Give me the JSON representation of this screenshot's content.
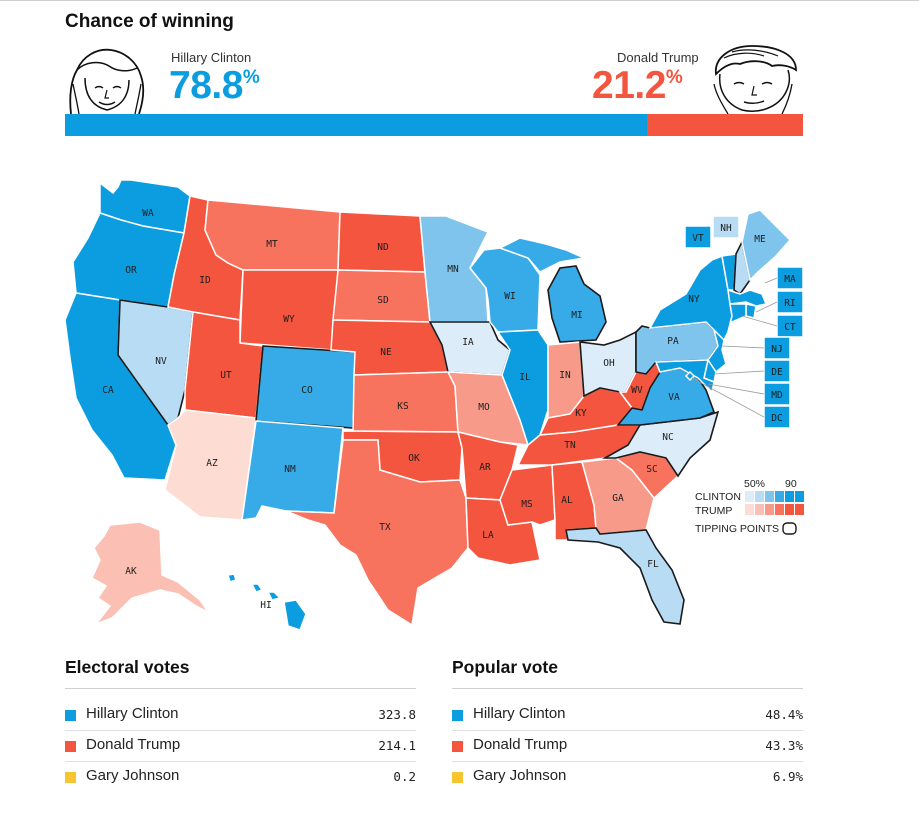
{
  "header": {
    "title": "Chance of winning",
    "clinton": {
      "name": "Hillary Clinton",
      "pct": "78.8",
      "pct_value": 78.8,
      "color": "#0b9ddf"
    },
    "trump": {
      "name": "Donald Trump",
      "pct": "21.2",
      "pct_value": 21.2,
      "color": "#f4553f"
    },
    "pct_sign": "%"
  },
  "colors": {
    "d_strong": "#0b9ddf",
    "d_mid": "#37abe8",
    "d_light": "#7fc4ec",
    "d_pale": "#b8dcf4",
    "d_faint": "#dcecf8",
    "r_strong": "#f4553f",
    "r_mid": "#f8735e",
    "r_light": "#f89a8a",
    "r_pale": "#fbc0b3",
    "r_faint": "#fcdcd3"
  },
  "map": {
    "states": {
      "WA": "d_strong",
      "OR": "d_strong",
      "CA": "d_strong",
      "NV": "d_pale",
      "ID": "r_strong",
      "MT": "r_mid",
      "WY": "r_strong",
      "UT": "r_strong",
      "AZ": "r_faint",
      "CO": "d_mid",
      "NM": "d_mid",
      "ND": "r_strong",
      "SD": "r_mid",
      "NE": "r_strong",
      "KS": "r_mid",
      "OK": "r_strong",
      "TX": "r_mid",
      "MN": "d_light",
      "IA": "d_faint",
      "MO": "r_light",
      "AR": "r_strong",
      "LA": "r_strong",
      "WI": "d_mid",
      "IL": "d_strong",
      "MS": "r_strong",
      "MI": "d_mid",
      "IN": "r_light",
      "KY": "r_strong",
      "TN": "r_strong",
      "AL": "r_strong",
      "OH": "d_faint",
      "WV": "r_strong",
      "GA": "r_light",
      "FL": "d_pale",
      "SC": "r_mid",
      "NC": "d_faint",
      "VA": "d_mid",
      "PA": "d_light",
      "NY": "d_strong",
      "ME": "d_light",
      "NH": "d_pale",
      "VT": "d_strong",
      "MA": "d_strong",
      "RI": "d_strong",
      "CT": "d_strong",
      "NJ": "d_strong",
      "DE": "d_strong",
      "MD": "d_strong",
      "DC": "d_strong",
      "AK": "r_pale",
      "HI": "d_strong"
    },
    "tipping_points": [
      "NV",
      "CO",
      "IA",
      "OH",
      "PA",
      "NC",
      "FL",
      "VA",
      "MI",
      "NH"
    ],
    "legend": {
      "scale_low": "50%",
      "scale_high": "90",
      "clinton_label": "CLINTON",
      "trump_label": "TRUMP",
      "tipping_label": "TIPPING POINTS"
    }
  },
  "electoral": {
    "title": "Electoral votes",
    "rows": [
      {
        "name": "Hillary Clinton",
        "value": "323.8",
        "color": "#0b9ddf"
      },
      {
        "name": "Donald Trump",
        "value": "214.1",
        "color": "#f4553f"
      },
      {
        "name": "Gary Johnson",
        "value": "0.2",
        "color": "#f7c52f"
      }
    ]
  },
  "popular": {
    "title": "Popular vote",
    "rows": [
      {
        "name": "Hillary Clinton",
        "value": "48.4%",
        "color": "#0b9ddf"
      },
      {
        "name": "Donald Trump",
        "value": "43.3%",
        "color": "#f4553f"
      },
      {
        "name": "Gary Johnson",
        "value": "6.9%",
        "color": "#f7c52f"
      }
    ]
  }
}
